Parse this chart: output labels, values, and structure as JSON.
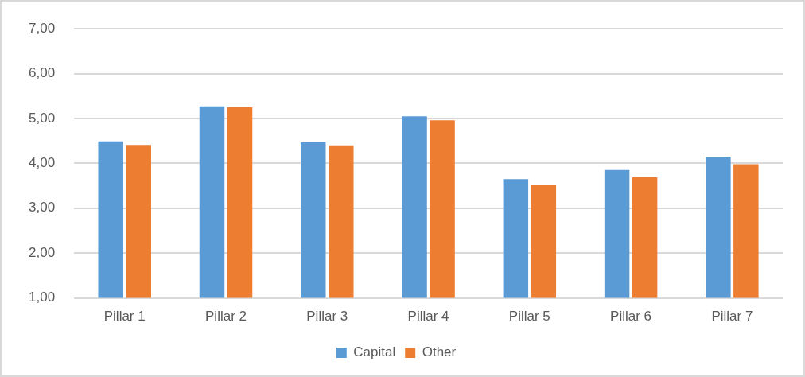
{
  "chart_data": {
    "type": "bar",
    "categories": [
      "Pillar 1",
      "Pillar 2",
      "Pillar 3",
      "Pillar 4",
      "Pillar 5",
      "Pillar 6",
      "Pillar 7"
    ],
    "series": [
      {
        "name": "Capital",
        "color": "#5b9bd5",
        "values": [
          4.49,
          5.27,
          4.47,
          5.05,
          3.65,
          3.85,
          4.15
        ]
      },
      {
        "name": "Other",
        "color": "#ed7d31",
        "values": [
          4.41,
          5.25,
          4.4,
          4.96,
          3.53,
          3.69,
          3.98
        ]
      }
    ],
    "ylim": [
      1,
      7
    ],
    "yticks": [
      {
        "value": 1,
        "label": "1,00"
      },
      {
        "value": 2,
        "label": "2,00"
      },
      {
        "value": 3,
        "label": "3,00"
      },
      {
        "value": 4,
        "label": "4,00"
      },
      {
        "value": 5,
        "label": "5,00"
      },
      {
        "value": 6,
        "label": "6,00"
      },
      {
        "value": 7,
        "label": "7,00"
      }
    ],
    "grid": "y",
    "legend": "bottom"
  }
}
